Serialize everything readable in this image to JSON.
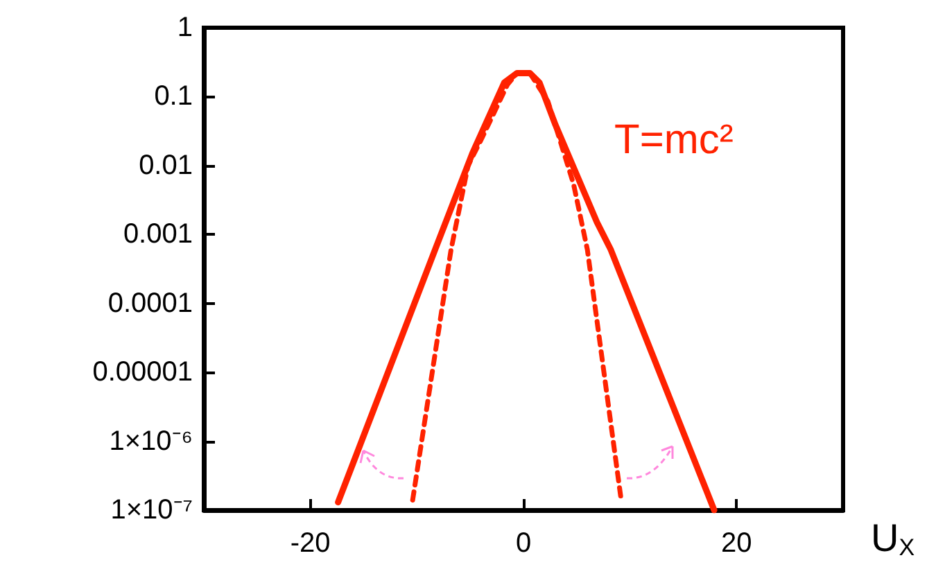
{
  "chart_data": {
    "type": "line",
    "xlabel": "U$_{X}$",
    "annotations": [
      "T=mc²"
    ],
    "log": "y",
    "grid": false,
    "marker": "none",
    "xlim": [
      -30,
      30
    ],
    "xticks": [
      -20,
      0,
      20
    ],
    "ylim": [
      1e-07,
      1
    ],
    "yticks": [
      1,
      0.1,
      0.01,
      0.001,
      0.0001,
      {
        "value": 1e-05,
        "label": "0.00001"
      },
      {
        "value": 1e-06,
        "label": "1×10⁻⁶"
      },
      {
        "value": 1e-07,
        "label": "1×10⁻⁷"
      }
    ],
    "series": [
      {
        "color": "#ff2200",
        "line_style": "solid",
        "x": [
          -17.4,
          -8.3,
          -4.8,
          -1.8,
          -0.6,
          0.6,
          1.5,
          3.0,
          6.9,
          8.2,
          17.9
        ],
        "values": [
          1.3e-07,
          0.0006,
          0.015,
          0.16,
          0.22,
          0.22,
          0.16,
          0.039,
          0.0015,
          0.0006,
          1e-07
        ]
      },
      {
        "color": "#ff2200",
        "line_style": "dashed",
        "x": [
          -10.4,
          -6.8,
          -5.2,
          -3.9,
          -1.5,
          -0.6,
          0.6,
          2.3,
          4.7,
          6.0,
          9.2
        ],
        "values": [
          1.4e-07,
          0.0006,
          0.01,
          0.025,
          0.15,
          0.22,
          0.22,
          0.085,
          0.0054,
          0.0006,
          1.3e-07
        ]
      }
    ]
  }
}
